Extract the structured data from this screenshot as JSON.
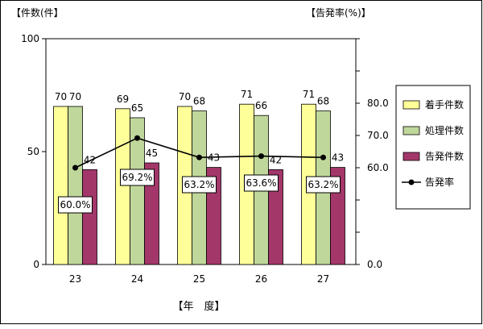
{
  "chart_data": {
    "type": "bar",
    "categories": [
      "23",
      "24",
      "25",
      "26",
      "27"
    ],
    "series": [
      {
        "name": "着手件数",
        "type": "bar",
        "axis": "left",
        "color": "#ffff99",
        "values": [
          70,
          69,
          70,
          71,
          71
        ]
      },
      {
        "name": "処理件数",
        "type": "bar",
        "axis": "left",
        "color": "#c0d79b",
        "values": [
          70,
          65,
          68,
          66,
          68
        ]
      },
      {
        "name": "告発件数",
        "type": "bar",
        "axis": "left",
        "color": "#a3376a",
        "values": [
          42,
          45,
          43,
          42,
          43
        ]
      },
      {
        "name": "告発率",
        "type": "line",
        "axis": "right",
        "color": "#000000",
        "values": [
          60.0,
          69.2,
          63.2,
          63.6,
          63.2
        ]
      }
    ],
    "bar_value_labels": [
      [
        "70",
        "69",
        "70",
        "71",
        "71"
      ],
      [
        "70",
        "65",
        "68",
        "66",
        "68"
      ],
      [
        "42",
        "45",
        "43",
        "42",
        "43"
      ]
    ],
    "rate_labels": [
      "60.0%",
      "69.2%",
      "63.2%",
      "63.6%",
      "63.2%"
    ],
    "y_left_label": "【件数(件】",
    "y_right_label": "【告発率(%)】",
    "xlabel": "【年　度】",
    "y_left_ticks": [
      "100",
      "50",
      "0"
    ],
    "y_right_ticks": [
      "80.0",
      "70.0",
      "60.0",
      "0.0"
    ],
    "ylim_left": [
      0,
      100
    ],
    "ylim_right_upper": [
      50,
      85
    ],
    "legend_position": "right",
    "grid": false,
    "colors": {
      "plot_background": "#ffffff",
      "outer_border": "#000000",
      "bar_stroke": "#000000",
      "rate_line": "#000000"
    }
  }
}
